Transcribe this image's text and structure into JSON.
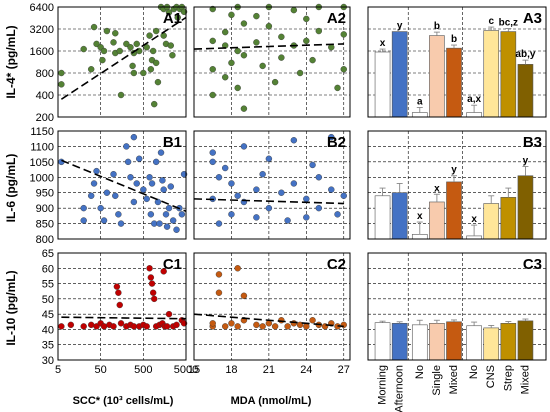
{
  "chart_data": [
    {
      "id": "A1",
      "type": "scatter",
      "panel_label": "A1",
      "ylabel": "IL-4* (pg/mL)",
      "xlabel": "",
      "yscale": "log",
      "ylim": [
        200,
        6400
      ],
      "yticks": [
        "200",
        "400",
        "800",
        "1600",
        "3200",
        "6400"
      ],
      "xticks": [],
      "points": [
        [
          6,
          800
        ],
        [
          6,
          560
        ],
        [
          20,
          1700
        ],
        [
          30,
          900
        ],
        [
          35,
          3400
        ],
        [
          40,
          2000
        ],
        [
          50,
          1800
        ],
        [
          55,
          1200
        ],
        [
          60,
          1600
        ],
        [
          70,
          3000
        ],
        [
          100,
          2100
        ],
        [
          110,
          2800
        ],
        [
          110,
          1500
        ],
        [
          140,
          1600
        ],
        [
          150,
          400
        ],
        [
          200,
          2000
        ],
        [
          250,
          1800
        ],
        [
          280,
          1000
        ],
        [
          300,
          800
        ],
        [
          300,
          1500
        ],
        [
          350,
          2000
        ],
        [
          400,
          1600
        ],
        [
          500,
          800
        ],
        [
          600,
          1800
        ],
        [
          700,
          2600
        ],
        [
          750,
          900
        ],
        [
          800,
          1200
        ],
        [
          850,
          1600
        ],
        [
          900,
          300
        ],
        [
          1000,
          3000
        ],
        [
          1000,
          1100
        ],
        [
          1100,
          600
        ],
        [
          1300,
          6400
        ],
        [
          1500,
          6000
        ],
        [
          1500,
          2600
        ],
        [
          1700,
          2000
        ],
        [
          1800,
          6400
        ],
        [
          2000,
          5400
        ],
        [
          2200,
          1900
        ],
        [
          2400,
          1400
        ],
        [
          2600,
          6000
        ],
        [
          3000,
          6400
        ],
        [
          3200,
          4600
        ],
        [
          3600,
          6000
        ],
        [
          4000,
          6400
        ],
        [
          4500,
          5500
        ]
      ],
      "trend": [
        [
          6,
          350
        ],
        [
          5000,
          4600
        ]
      ],
      "color": "#548235"
    },
    {
      "id": "A2",
      "type": "scatter",
      "panel_label": "A2",
      "yscale": "log",
      "ylim": [
        200,
        6400
      ],
      "yticks": [],
      "xticks": [],
      "points": [
        [
          16.5,
          6000
        ],
        [
          16.5,
          2200
        ],
        [
          16.5,
          900
        ],
        [
          16.5,
          400
        ],
        [
          17.5,
          2900
        ],
        [
          17.5,
          1900
        ],
        [
          17.5,
          700
        ],
        [
          18,
          5000
        ],
        [
          18,
          1100
        ],
        [
          18.5,
          6400
        ],
        [
          18.5,
          1600
        ],
        [
          18.5,
          500
        ],
        [
          19,
          3800
        ],
        [
          19,
          1400
        ],
        [
          19,
          260
        ],
        [
          20,
          4800
        ],
        [
          20,
          2100
        ],
        [
          20.5,
          1000
        ],
        [
          21,
          6400
        ],
        [
          21,
          3500
        ],
        [
          21.5,
          600
        ],
        [
          22,
          2500
        ],
        [
          22,
          1300
        ],
        [
          23,
          5800
        ],
        [
          23,
          1900
        ],
        [
          23.5,
          800
        ],
        [
          24,
          4400
        ],
        [
          24,
          2200
        ],
        [
          24.5,
          1200
        ],
        [
          25,
          6400
        ],
        [
          25,
          3000
        ],
        [
          26,
          1800
        ],
        [
          26.5,
          500
        ],
        [
          27,
          6400
        ],
        [
          27,
          2700
        ],
        [
          27,
          900
        ]
      ],
      "trend": [
        [
          15,
          1700
        ],
        [
          27,
          2000
        ]
      ],
      "color": "#548235"
    },
    {
      "id": "A3",
      "type": "bar",
      "panel_label": "A3",
      "yscale": "log",
      "ylim": [
        200,
        6400
      ],
      "categories": [
        "Morning",
        "Afternoon",
        "No",
        "Single",
        "Mixed",
        "No",
        "CNS",
        "Strep",
        "Mixed"
      ],
      "values": [
        1550,
        2950,
        230,
        2600,
        1750,
        230,
        3050,
        2950,
        1050
      ],
      "errors": [
        150,
        0,
        40,
        300,
        180,
        60,
        350,
        300,
        150
      ],
      "letters": [
        "x",
        "y",
        "a",
        "b",
        "b",
        "a,x",
        "c",
        "bc,z",
        "ab,y"
      ],
      "colors": [
        "#ffffff",
        "#4472c4",
        "#ffffff",
        "#f8cbad",
        "#c55a11",
        "#ffffff",
        "#ffe699",
        "#bf9000",
        "#806000"
      ]
    },
    {
      "id": "B1",
      "type": "scatter",
      "panel_label": "B1",
      "ylabel": "IL-6 (pg/mL)",
      "yscale": "linear",
      "ylim": [
        800,
        1150
      ],
      "yticks": [
        "800",
        "850",
        "900",
        "950",
        "1000",
        "1050",
        "1100",
        "1150"
      ],
      "xticks": [],
      "points": [
        [
          6,
          1050
        ],
        [
          20,
          900
        ],
        [
          20,
          860
        ],
        [
          30,
          940
        ],
        [
          35,
          980
        ],
        [
          40,
          1020
        ],
        [
          50,
          900
        ],
        [
          60,
          860
        ],
        [
          70,
          950
        ],
        [
          100,
          1010
        ],
        [
          110,
          940
        ],
        [
          130,
          880
        ],
        [
          150,
          850
        ],
        [
          200,
          1100
        ],
        [
          220,
          1050
        ],
        [
          250,
          1000
        ],
        [
          300,
          1130
        ],
        [
          300,
          920
        ],
        [
          350,
          980
        ],
        [
          400,
          1060
        ],
        [
          500,
          960
        ],
        [
          600,
          930
        ],
        [
          700,
          1000
        ],
        [
          750,
          880
        ],
        [
          800,
          980
        ],
        [
          900,
          850
        ],
        [
          1000,
          1050
        ],
        [
          1100,
          920
        ],
        [
          1200,
          850
        ],
        [
          1300,
          1080
        ],
        [
          1400,
          990
        ],
        [
          1500,
          960
        ],
        [
          1700,
          880
        ],
        [
          1800,
          840
        ],
        [
          2000,
          900
        ],
        [
          2200,
          970
        ],
        [
          2500,
          860
        ],
        [
          3000,
          830
        ],
        [
          3500,
          900
        ],
        [
          4000,
          880
        ],
        [
          4500,
          1010
        ]
      ],
      "trend": [
        [
          6,
          1055
        ],
        [
          5000,
          890
        ]
      ],
      "color": "#4472c4"
    },
    {
      "id": "B2",
      "type": "scatter",
      "panel_label": "B2",
      "yscale": "linear",
      "ylim": [
        800,
        1150
      ],
      "yticks": [],
      "xticks": [],
      "points": [
        [
          16.5,
          1080
        ],
        [
          16.5,
          1050
        ],
        [
          16.5,
          930
        ],
        [
          17,
          1000
        ],
        [
          17,
          850
        ],
        [
          17.5,
          1030
        ],
        [
          18,
          980
        ],
        [
          18,
          880
        ],
        [
          18.5,
          940
        ],
        [
          19,
          1100
        ],
        [
          19,
          920
        ],
        [
          20,
          960
        ],
        [
          20,
          870
        ],
        [
          20.5,
          1010
        ],
        [
          21,
          1060
        ],
        [
          21,
          900
        ],
        [
          22,
          950
        ],
        [
          22.5,
          860
        ],
        [
          23,
          1120
        ],
        [
          23,
          980
        ],
        [
          24,
          930
        ],
        [
          24,
          870
        ],
        [
          24.5,
          1040
        ],
        [
          25,
          1000
        ],
        [
          25,
          900
        ],
        [
          26,
          1130
        ],
        [
          26,
          960
        ],
        [
          26.5,
          880
        ],
        [
          27,
          940
        ]
      ],
      "trend": [
        [
          15,
          930
        ],
        [
          27,
          915
        ]
      ],
      "color": "#4472c4"
    },
    {
      "id": "B3",
      "type": "bar",
      "panel_label": "B3",
      "yscale": "linear",
      "ylim": [
        800,
        1150
      ],
      "categories": [
        "Morning",
        "Afternoon",
        "No",
        "Single",
        "Mixed",
        "No",
        "CNS",
        "Strep",
        "Mixed"
      ],
      "values": [
        940,
        950,
        815,
        920,
        985,
        810,
        915,
        935,
        1005
      ],
      "errors": [
        25,
        30,
        40,
        25,
        20,
        35,
        25,
        30,
        30
      ],
      "letters": [
        "",
        "",
        "x",
        "x",
        "y",
        "x",
        "",
        "",
        "y"
      ],
      "colors": [
        "#ffffff",
        "#4472c4",
        "#ffffff",
        "#f8cbad",
        "#c55a11",
        "#ffffff",
        "#ffe699",
        "#bf9000",
        "#806000"
      ]
    },
    {
      "id": "C1",
      "type": "scatter",
      "panel_label": "C1",
      "ylabel": "IL-10 (pg/mL)",
      "yscale": "linear",
      "ylim": [
        30,
        65
      ],
      "yticks": [
        "30",
        "35",
        "40",
        "45",
        "50",
        "55",
        "60",
        "65"
      ],
      "xticks": [
        "5",
        "50",
        "500",
        "5000"
      ],
      "xlabel": "SCC* (10³ cells/mL)",
      "xscale": "log",
      "xlim": [
        5,
        5000
      ],
      "points": [
        [
          6,
          41
        ],
        [
          10,
          41.5
        ],
        [
          20,
          41
        ],
        [
          30,
          41.5
        ],
        [
          40,
          41
        ],
        [
          50,
          42
        ],
        [
          60,
          41
        ],
        [
          80,
          41.5
        ],
        [
          100,
          41
        ],
        [
          120,
          54
        ],
        [
          130,
          52
        ],
        [
          140,
          48
        ],
        [
          150,
          42
        ],
        [
          200,
          41
        ],
        [
          250,
          41.5
        ],
        [
          300,
          41
        ],
        [
          400,
          41
        ],
        [
          500,
          41.5
        ],
        [
          600,
          41
        ],
        [
          700,
          60
        ],
        [
          750,
          57
        ],
        [
          800,
          55
        ],
        [
          850,
          52
        ],
        [
          900,
          50
        ],
        [
          1000,
          41
        ],
        [
          1200,
          41.5
        ],
        [
          1400,
          42
        ],
        [
          1500,
          59
        ],
        [
          1600,
          41
        ],
        [
          1800,
          41
        ],
        [
          2000,
          45
        ],
        [
          2500,
          41
        ],
        [
          3000,
          41.5
        ],
        [
          4000,
          43
        ],
        [
          4500,
          42
        ]
      ],
      "trend": [
        [
          6,
          44
        ],
        [
          5000,
          43.5
        ]
      ],
      "color": "#c00000"
    },
    {
      "id": "C2",
      "type": "scatter",
      "panel_label": "C2",
      "yscale": "linear",
      "ylim": [
        30,
        65
      ],
      "yticks": [],
      "xticks": [
        "15",
        "18",
        "21",
        "24",
        "27"
      ],
      "xlabel": "MDA (nmol/mL)",
      "xlim": [
        15,
        27.5
      ],
      "points": [
        [
          16.5,
          41
        ],
        [
          16.5,
          42
        ],
        [
          17,
          58
        ],
        [
          17,
          52
        ],
        [
          17.5,
          41
        ],
        [
          18,
          42
        ],
        [
          18.5,
          60
        ],
        [
          18.5,
          41
        ],
        [
          19,
          43
        ],
        [
          19,
          51
        ],
        [
          20,
          41.5
        ],
        [
          20.5,
          41
        ],
        [
          21,
          42
        ],
        [
          21.5,
          41
        ],
        [
          22,
          43
        ],
        [
          22.5,
          41
        ],
        [
          23,
          42
        ],
        [
          23.5,
          41.5
        ],
        [
          24,
          41
        ],
        [
          24.5,
          43
        ],
        [
          25,
          41.5
        ],
        [
          25.5,
          41
        ],
        [
          26,
          42
        ],
        [
          26.5,
          41
        ],
        [
          27,
          41.5
        ]
      ],
      "trend": [
        [
          15,
          45
        ],
        [
          27,
          41
        ]
      ],
      "color": "#c55a11"
    },
    {
      "id": "C3",
      "type": "bar",
      "panel_label": "C3",
      "yscale": "linear",
      "ylim": [
        30,
        65
      ],
      "categories": [
        "Morning",
        "Afternoon",
        "No",
        "Single",
        "Mixed",
        "No",
        "CNS",
        "Strep",
        "Mixed"
      ],
      "values": [
        42.2,
        42,
        41.5,
        42,
        42.5,
        41.2,
        40.5,
        42,
        42.8
      ],
      "errors": [
        0.5,
        0.5,
        1.5,
        1,
        0.6,
        1.2,
        0.8,
        0.6,
        0.6
      ],
      "letters": [
        "",
        "",
        "",
        "",
        "",
        "",
        "",
        "",
        ""
      ],
      "colors": [
        "#ffffff",
        "#4472c4",
        "#ffffff",
        "#f8cbad",
        "#c55a11",
        "#ffffff",
        "#ffe699",
        "#bf9000",
        "#806000"
      ]
    }
  ]
}
